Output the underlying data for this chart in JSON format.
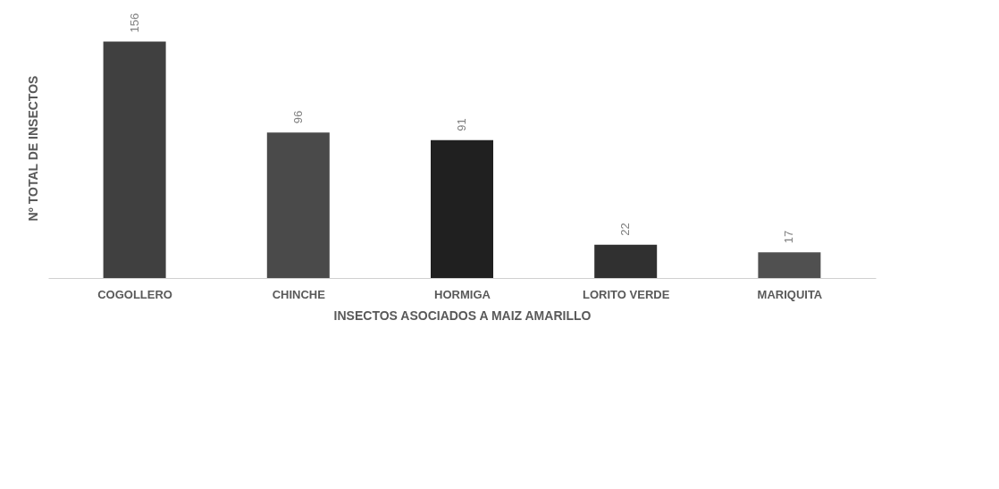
{
  "chart_data": {
    "type": "bar",
    "xlabel": "INSECTOS ASOCIADOS A MAIZ AMARILLO",
    "ylabel": "Nº  TOTAL DE INSECTOS",
    "categories": [
      "COGOLLERO",
      "CHINCHE",
      "HORMIGA",
      "LORITO VERDE",
      "MARIQUITA"
    ],
    "values": [
      156,
      96,
      91,
      22,
      17
    ],
    "colors": [
      "#404040",
      "#4a4a4a",
      "#202020",
      "#303030",
      "#505050"
    ],
    "data_labels": true,
    "grid": false,
    "tick_labels": "x"
  }
}
